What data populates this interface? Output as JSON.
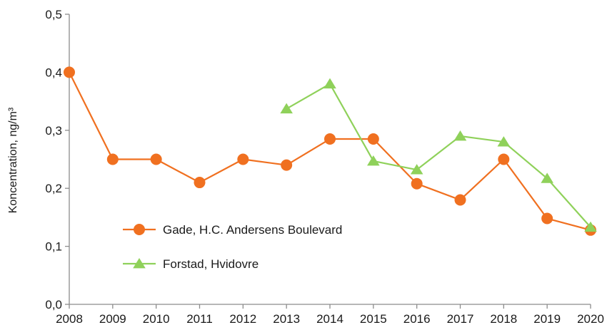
{
  "chart_data": {
    "type": "line",
    "x": [
      "2008",
      "2009",
      "2010",
      "2011",
      "2012",
      "2013",
      "2014",
      "2015",
      "2016",
      "2017",
      "2018",
      "2019",
      "2020"
    ],
    "y_ticks": [
      "0,0",
      "0,1",
      "0,2",
      "0,3",
      "0,4",
      "0,5"
    ],
    "ylim": [
      0,
      0.5
    ],
    "ylabel": "Koncentration, ng/m³",
    "xlabel": "",
    "grid": false,
    "legend_position": "lower-left inside plot",
    "series": [
      {
        "name": "Gade, H.C. Andersens Boulevard",
        "color": "#f07020",
        "marker": "circle",
        "values": [
          0.4,
          0.25,
          0.25,
          0.21,
          0.25,
          0.24,
          0.285,
          0.285,
          0.208,
          0.18,
          0.25,
          0.148,
          0.128
        ]
      },
      {
        "name": "Forstad, Hvidovre",
        "color": "#8fd15a",
        "marker": "triangle",
        "values": [
          null,
          null,
          null,
          null,
          null,
          0.337,
          0.38,
          0.247,
          0.232,
          0.29,
          0.28,
          0.217,
          0.133
        ]
      }
    ]
  }
}
